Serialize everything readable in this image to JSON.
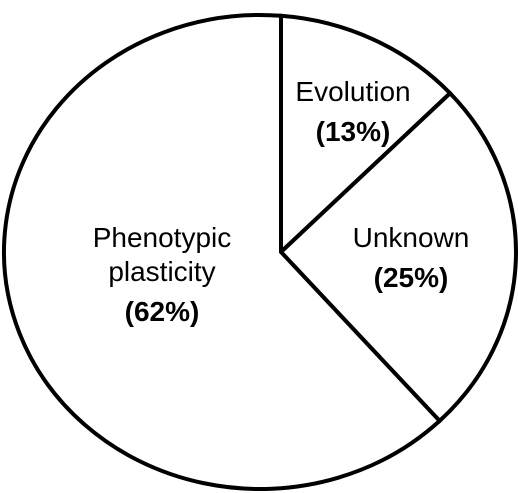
{
  "chart_data": {
    "type": "pie",
    "categories": [
      "Evolution",
      "Unknown",
      "Phenotypic plasticity"
    ],
    "values": [
      13,
      25,
      62
    ],
    "value_labels": [
      "(13%)",
      "(25%)",
      "(62%)"
    ],
    "color": "#ffffff"
  }
}
